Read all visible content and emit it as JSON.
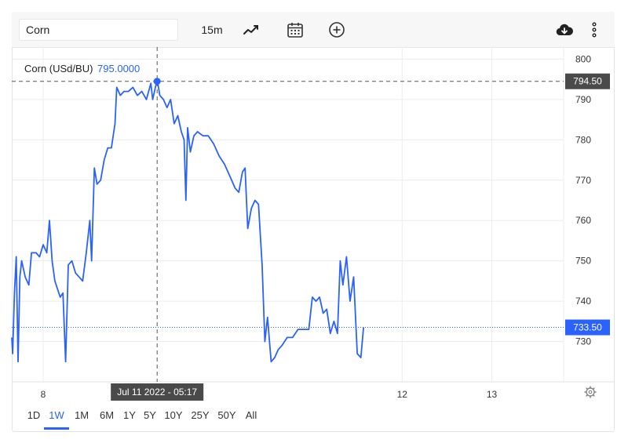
{
  "toolbar": {
    "symbol": "Corn",
    "interval": "15m",
    "icons": [
      "line-chart-icon",
      "calendar-icon",
      "add-circle-icon",
      "cloud-download-icon",
      "more-vertical-icon"
    ]
  },
  "legend": {
    "label": "Corn (USd/BU)",
    "value": "795.0000"
  },
  "crosshair": {
    "date_label": "Jul 11 2022 - 05:17",
    "price_label": "794.50",
    "price": 794.5
  },
  "last_price": {
    "label": "733.50",
    "price": 733.5
  },
  "range_buttons": [
    {
      "label": "1D",
      "active": false
    },
    {
      "label": "1W",
      "active": true
    },
    {
      "label": "1M",
      "active": false
    },
    {
      "label": "6M",
      "active": false
    },
    {
      "label": "1Y",
      "active": false
    },
    {
      "label": "5Y",
      "active": false
    },
    {
      "label": "10Y",
      "active": false
    },
    {
      "label": "25Y",
      "active": false
    },
    {
      "label": "50Y",
      "active": false
    },
    {
      "label": "All",
      "active": false
    }
  ],
  "colors": {
    "line": "#2962ff",
    "grid": "#ececec",
    "crosshair": "#555555",
    "last_price": "#2962ff"
  },
  "chart_data": {
    "type": "line",
    "title": "Corn (USd/BU)",
    "ylim": [
      720,
      803
    ],
    "yticks": [
      730,
      740,
      750,
      760,
      770,
      780,
      790,
      800
    ],
    "xticks": [
      {
        "label": "8",
        "x": 8.0
      },
      {
        "label": "12",
        "x": 12.0
      },
      {
        "label": "13",
        "x": 13.0
      }
    ],
    "xlim": [
      7.65,
      13.8
    ],
    "grid": true,
    "series": [
      {
        "name": "Corn (USd/BU)",
        "points": [
          [
            7.65,
            731
          ],
          [
            7.66,
            727
          ],
          [
            7.68,
            742
          ],
          [
            7.7,
            751
          ],
          [
            7.72,
            725
          ],
          [
            7.74,
            746
          ],
          [
            7.76,
            750
          ],
          [
            7.8,
            746
          ],
          [
            7.84,
            744
          ],
          [
            7.87,
            752
          ],
          [
            7.92,
            752
          ],
          [
            7.96,
            751
          ],
          [
            8.0,
            754
          ],
          [
            8.04,
            752
          ],
          [
            8.07,
            760
          ],
          [
            8.1,
            750
          ],
          [
            8.13,
            745
          ],
          [
            8.16,
            743
          ],
          [
            8.19,
            741
          ],
          [
            8.22,
            742
          ],
          [
            8.25,
            725
          ],
          [
            8.28,
            749
          ],
          [
            8.32,
            750
          ],
          [
            8.36,
            747
          ],
          [
            8.4,
            746
          ],
          [
            8.44,
            745
          ],
          [
            8.48,
            752
          ],
          [
            8.52,
            760
          ],
          [
            8.54,
            750
          ],
          [
            8.57,
            773
          ],
          [
            8.6,
            769
          ],
          [
            8.64,
            770
          ],
          [
            8.68,
            775
          ],
          [
            8.72,
            778
          ],
          [
            8.76,
            778
          ],
          [
            8.8,
            784
          ],
          [
            8.82,
            793
          ],
          [
            8.86,
            791
          ],
          [
            8.9,
            792
          ],
          [
            8.95,
            792
          ],
          [
            9.0,
            793
          ],
          [
            9.05,
            791
          ],
          [
            9.1,
            792
          ],
          [
            9.15,
            790
          ],
          [
            9.2,
            794
          ],
          [
            9.22,
            790
          ],
          [
            9.27,
            795
          ],
          [
            9.3,
            791
          ],
          [
            9.34,
            790
          ],
          [
            9.38,
            788
          ],
          [
            9.42,
            790
          ],
          [
            9.46,
            784
          ],
          [
            9.5,
            786
          ],
          [
            9.54,
            782
          ],
          [
            9.57,
            780
          ],
          [
            9.59,
            765
          ],
          [
            9.61,
            783
          ],
          [
            9.64,
            777
          ],
          [
            9.68,
            781
          ],
          [
            9.72,
            782
          ],
          [
            9.78,
            781
          ],
          [
            9.84,
            781
          ],
          [
            9.9,
            779
          ],
          [
            9.96,
            776
          ],
          [
            10.02,
            774
          ],
          [
            10.08,
            771
          ],
          [
            10.14,
            768
          ],
          [
            10.18,
            767
          ],
          [
            10.22,
            772
          ],
          [
            10.25,
            773
          ],
          [
            10.28,
            758
          ],
          [
            10.32,
            763
          ],
          [
            10.36,
            765
          ],
          [
            10.4,
            764
          ],
          [
            10.44,
            749
          ],
          [
            10.47,
            730
          ],
          [
            10.5,
            736
          ],
          [
            10.54,
            725
          ],
          [
            10.58,
            726
          ],
          [
            10.62,
            728
          ],
          [
            10.66,
            729
          ],
          [
            10.72,
            731
          ],
          [
            10.78,
            731
          ],
          [
            10.84,
            733
          ],
          [
            10.9,
            733
          ],
          [
            10.96,
            733
          ],
          [
            11.0,
            741
          ],
          [
            11.04,
            740
          ],
          [
            11.08,
            741
          ],
          [
            11.12,
            737
          ],
          [
            11.16,
            738
          ],
          [
            11.2,
            732
          ],
          [
            11.24,
            735
          ],
          [
            11.28,
            732
          ],
          [
            11.31,
            750
          ],
          [
            11.34,
            744
          ],
          [
            11.38,
            751
          ],
          [
            11.42,
            740
          ],
          [
            11.46,
            746
          ],
          [
            11.5,
            727
          ],
          [
            11.54,
            726
          ],
          [
            11.57,
            733.5
          ]
        ]
      }
    ]
  }
}
